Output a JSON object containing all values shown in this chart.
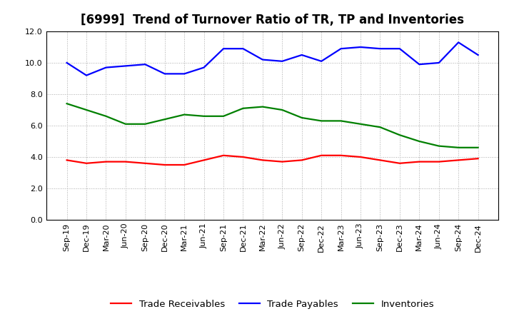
{
  "title": "[6999]  Trend of Turnover Ratio of TR, TP and Inventories",
  "x_labels": [
    "Sep-19",
    "Dec-19",
    "Mar-20",
    "Jun-20",
    "Sep-20",
    "Dec-20",
    "Mar-21",
    "Jun-21",
    "Sep-21",
    "Dec-21",
    "Mar-22",
    "Jun-22",
    "Sep-22",
    "Dec-22",
    "Mar-23",
    "Jun-23",
    "Sep-23",
    "Dec-23",
    "Mar-24",
    "Jun-24",
    "Sep-24",
    "Dec-24"
  ],
  "trade_receivables": [
    3.8,
    3.6,
    3.7,
    3.7,
    3.6,
    3.5,
    3.5,
    3.8,
    4.1,
    4.0,
    3.8,
    3.7,
    3.8,
    4.1,
    4.1,
    4.0,
    3.8,
    3.6,
    3.7,
    3.7,
    3.8,
    3.9
  ],
  "trade_payables": [
    10.0,
    9.2,
    9.7,
    9.8,
    9.9,
    9.3,
    9.3,
    9.7,
    10.9,
    10.9,
    10.2,
    10.1,
    10.5,
    10.1,
    10.9,
    11.0,
    10.9,
    10.9,
    9.9,
    10.0,
    11.3,
    10.5
  ],
  "inventories": [
    7.4,
    7.0,
    6.6,
    6.1,
    6.1,
    6.4,
    6.7,
    6.6,
    6.6,
    7.1,
    7.2,
    7.0,
    6.5,
    6.3,
    6.3,
    6.1,
    5.9,
    5.4,
    5.0,
    4.7,
    4.6,
    4.6
  ],
  "ylim": [
    0.0,
    12.0
  ],
  "yticks": [
    0.0,
    2.0,
    4.0,
    6.0,
    8.0,
    10.0,
    12.0
  ],
  "color_tr": "#ff0000",
  "color_tp": "#0000ff",
  "color_inv": "#008000",
  "legend_tr": "Trade Receivables",
  "legend_tp": "Trade Payables",
  "legend_inv": "Inventories",
  "bg_color": "#ffffff",
  "grid_color": "#aaaaaa",
  "title_fontsize": 12,
  "legend_fontsize": 9.5,
  "tick_fontsize": 8,
  "linewidth": 1.6
}
